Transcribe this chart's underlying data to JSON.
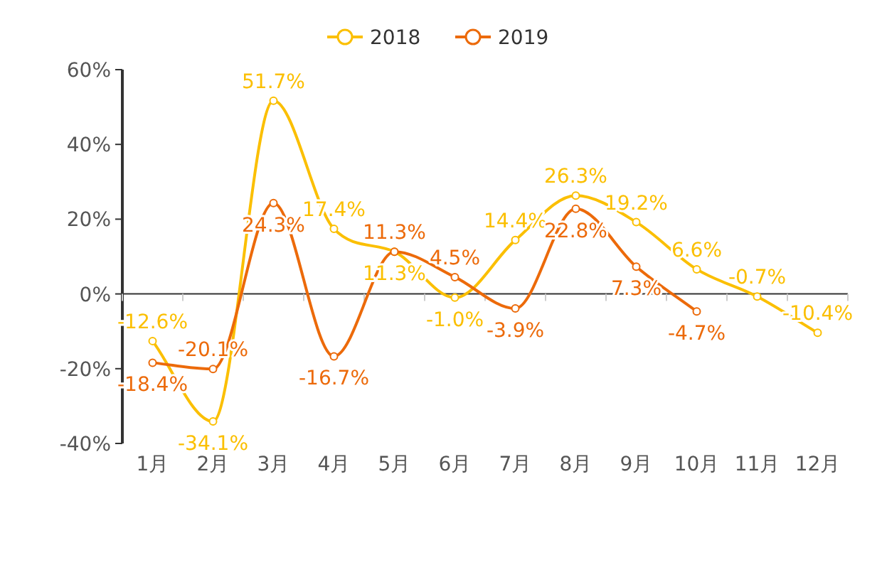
{
  "chart_data": {
    "type": "line",
    "categories": [
      "1月",
      "2月",
      "3月",
      "4月",
      "5月",
      "6月",
      "7月",
      "8月",
      "9月",
      "10月",
      "11月",
      "12月"
    ],
    "series": [
      {
        "name": "2018",
        "color": "#fbbf00",
        "values": [
          -12.6,
          -34.1,
          51.7,
          17.4,
          11.3,
          -1.0,
          14.4,
          26.3,
          19.2,
          6.6,
          -0.7,
          -10.4
        ],
        "value_labels": [
          "-12.6%",
          "-34.1%",
          "51.7%",
          "17.4%",
          "11.3%",
          "-1.0%",
          "14.4%",
          "26.3%",
          "19.2%",
          "6.6%",
          "-0.7%",
          "-10.4%"
        ]
      },
      {
        "name": "2019",
        "color": "#ec6a0a",
        "values": [
          -18.4,
          -20.1,
          24.3,
          -16.7,
          11.3,
          4.5,
          -3.9,
          22.8,
          7.3,
          -4.7,
          null,
          null
        ],
        "value_labels": [
          "-18.4%",
          "-20.1%",
          "24.3%",
          "-16.7%",
          "11.3%",
          "4.5%",
          "-3.9%",
          "22.8%",
          "7.3%",
          "-4.7%",
          null,
          null
        ]
      }
    ],
    "ylim": [
      -40,
      60
    ],
    "yticks": [
      {
        "value": -40,
        "label": "-40%"
      },
      {
        "value": -20,
        "label": "-20%"
      },
      {
        "value": 0,
        "label": "0%"
      },
      {
        "value": 20,
        "label": "20%"
      },
      {
        "value": 40,
        "label": "40%"
      },
      {
        "value": 60,
        "label": "60%"
      }
    ],
    "legend": "top",
    "marker": "circle",
    "line_style": "solid"
  }
}
